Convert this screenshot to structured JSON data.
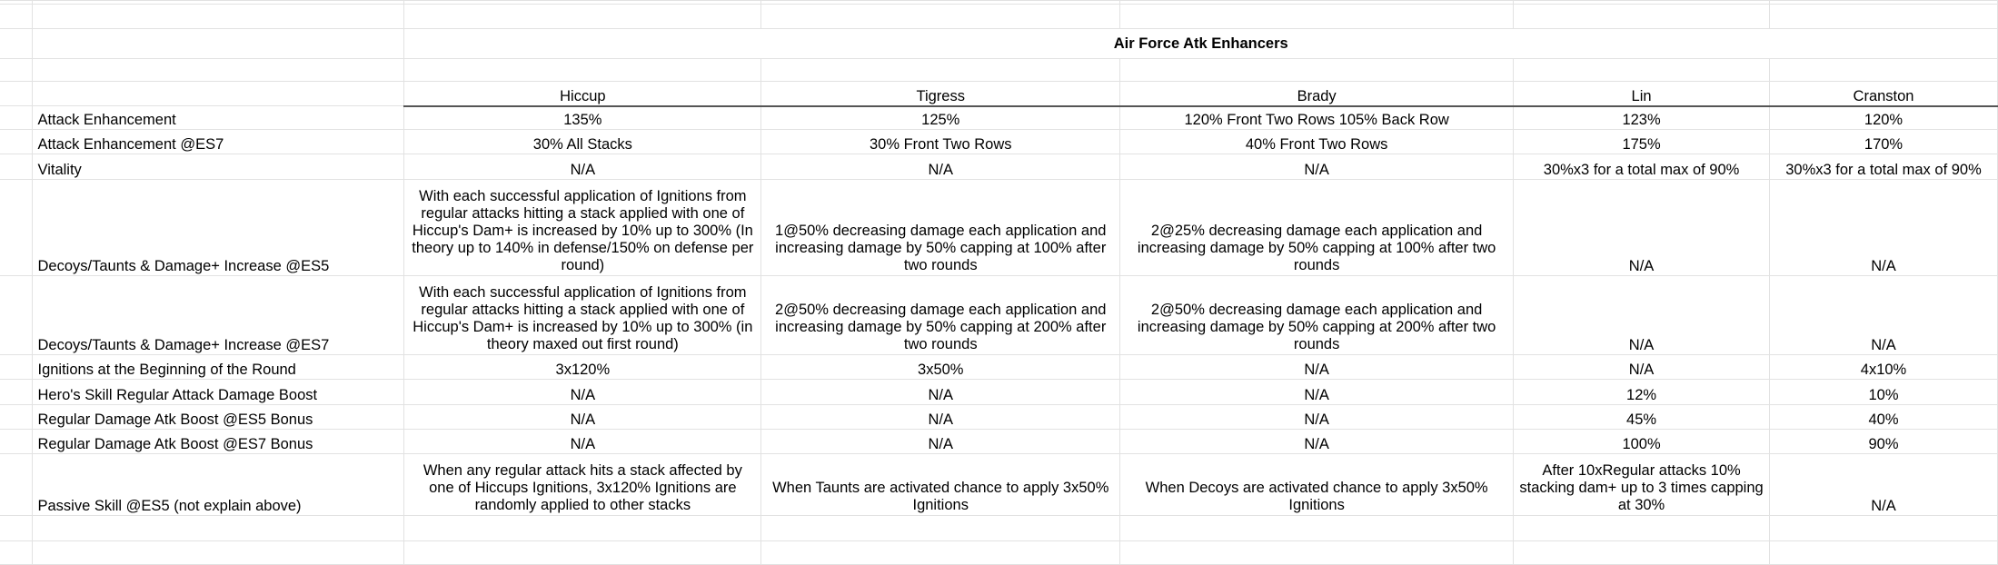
{
  "sheet": {
    "title": "Air Force Atk Enhancers",
    "headers": [
      "Hiccup",
      "Tigress",
      "Brady",
      "Lin",
      "Cranston"
    ],
    "rows": [
      {
        "label": "Attack Enhancement",
        "values": [
          "135%",
          "125%",
          "120% Front Two Rows 105% Back Row",
          "123%",
          "120%"
        ]
      },
      {
        "label": "Attack Enhancement @ES7",
        "values": [
          "30% All Stacks",
          "30% Front Two Rows",
          "40% Front Two Rows",
          "175%",
          "170%"
        ]
      },
      {
        "label": "Vitality",
        "values": [
          "N/A",
          "N/A",
          "N/A",
          "30%x3 for a total max of 90%",
          "30%x3 for a total max of 90%"
        ]
      },
      {
        "label": "Decoys/Taunts & Damage+ Increase @ES5",
        "values": [
          "With each successful application of Ignitions from regular attacks hitting a stack applied with one of Hiccup's Dam+ is increased by 10% up to 300% (In theory up to 140% in defense/150% on defense per round)",
          "1@50% decreasing damage each application and increasing damage by 50% capping at 100% after two rounds",
          "2@25% decreasing damage each application and increasing damage by 50% capping at 100% after two rounds",
          "N/A",
          "N/A"
        ]
      },
      {
        "label": "Decoys/Taunts & Damage+ Increase @ES7",
        "values": [
          "With each successful application of Ignitions from regular attacks hitting a stack applied with one of Hiccup's Dam+ is increased by 10% up to 300% (in theory maxed out first round)",
          "2@50% decreasing damage each application and increasing damage by 50% capping at 200% after two rounds",
          "2@50% decreasing damage each application and increasing damage by 50% capping at 200% after two rounds",
          "N/A",
          "N/A"
        ]
      },
      {
        "label": "Ignitions at the Beginning of the Round",
        "values": [
          "3x120%",
          "3x50%",
          "N/A",
          "N/A",
          "4x10%"
        ]
      },
      {
        "label": "Hero's Skill Regular Attack Damage Boost",
        "values": [
          "N/A",
          "N/A",
          "N/A",
          "12%",
          "10%"
        ]
      },
      {
        "label": "Regular Damage Atk Boost @ES5 Bonus",
        "values": [
          "N/A",
          "N/A",
          "N/A",
          "45%",
          "40%"
        ]
      },
      {
        "label": "Regular Damage Atk Boost @ES7 Bonus",
        "values": [
          "N/A",
          "N/A",
          "N/A",
          "100%",
          "90%"
        ]
      },
      {
        "label": "Passive Skill @ES5 (not explain above)",
        "values": [
          "When any regular attack hits a stack affected by one of Hiccups Ignitions, 3x120% Ignitions are randomly applied to other stacks",
          "When Taunts are activated chance to apply 3x50% Ignitions",
          "When Decoys are activated chance to apply 3x50% Ignitions",
          "After 10xRegular attacks 10% stacking dam+ up to 3 times capping at 30%",
          "N/A"
        ]
      }
    ]
  }
}
